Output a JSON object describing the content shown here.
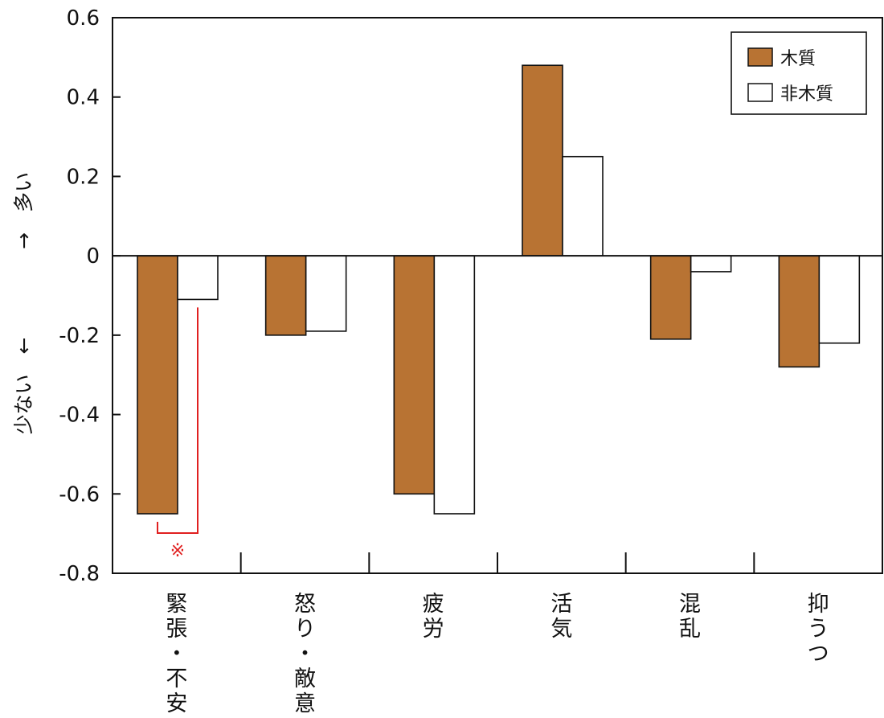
{
  "chart_data": {
    "type": "bar",
    "categories": [
      "緊張・不安",
      "怒り・敵意",
      "疲労",
      "活気",
      "混乱",
      "抑うつ"
    ],
    "series": [
      {
        "name": "木質",
        "color": "#b87333",
        "values": [
          -0.65,
          -0.2,
          -0.6,
          0.48,
          -0.21,
          -0.28
        ]
      },
      {
        "name": "非木質",
        "color": "#ffffff",
        "values": [
          -0.11,
          -0.19,
          -0.65,
          0.25,
          -0.04,
          -0.22
        ]
      }
    ],
    "ylim": [
      -0.8,
      0.6
    ],
    "yticks": [
      0.6,
      0.4,
      0.2,
      0,
      -0.2,
      -0.4,
      -0.6,
      -0.8
    ],
    "ytick_labels": [
      "0.6",
      "0.4",
      "0.2",
      "0",
      "-0.2",
      "-0.4",
      "-0.6",
      "-0.8"
    ],
    "ylabel_low": "少ない　←",
    "ylabel_high": "→　多い",
    "legend_position": "top-right",
    "grid": false,
    "significance": {
      "category": "緊張・不安",
      "mark": "※",
      "color": "#e02020"
    }
  }
}
